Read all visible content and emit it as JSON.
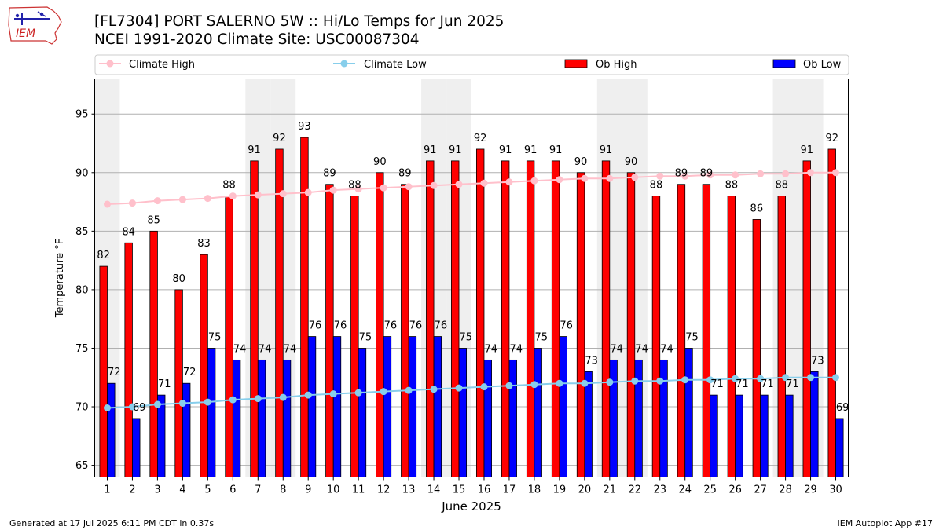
{
  "header": {
    "title_line1": "[FL7304] PORT SALERNO 5W :: Hi/Lo Temps for Jun 2025",
    "title_line2": "NCEI 1991-2020 Climate Site: USC00087304"
  },
  "logo": {
    "text": "IEM"
  },
  "footer": {
    "generated": "Generated at 17 Jul 2025 6:11 PM CDT in 0.37s",
    "app": "IEM Autoplot App #17"
  },
  "colors": {
    "ob_high": "#ff0000",
    "ob_low": "#0000ff",
    "climate_high": "#ffc0cb",
    "climate_low": "#87ceeb",
    "weekend_shade": "#efefef",
    "grid": "#b0b0b0"
  },
  "chart_data": {
    "type": "bar",
    "xlabel": "June 2025",
    "ylabel": "Temperature °F",
    "ylim": [
      64,
      98
    ],
    "yticks": [
      65,
      70,
      75,
      80,
      85,
      90,
      95
    ],
    "grid": "horizontal",
    "legend_position": "top",
    "categories": [
      1,
      2,
      3,
      4,
      5,
      6,
      7,
      8,
      9,
      10,
      11,
      12,
      13,
      14,
      15,
      16,
      17,
      18,
      19,
      20,
      21,
      22,
      23,
      24,
      25,
      26,
      27,
      28,
      29,
      30
    ],
    "weekend_days": [
      1,
      7,
      8,
      14,
      15,
      21,
      22,
      28,
      29
    ],
    "series": [
      {
        "name": "Climate High",
        "kind": "line",
        "values": [
          87.3,
          87.4,
          87.6,
          87.7,
          87.8,
          88.0,
          88.1,
          88.2,
          88.3,
          88.5,
          88.6,
          88.7,
          88.8,
          88.9,
          89.0,
          89.1,
          89.2,
          89.3,
          89.4,
          89.5,
          89.5,
          89.6,
          89.7,
          89.7,
          89.8,
          89.8,
          89.9,
          89.9,
          90.0,
          90.0
        ]
      },
      {
        "name": "Climate Low",
        "kind": "line",
        "values": [
          69.9,
          70.0,
          70.2,
          70.3,
          70.4,
          70.6,
          70.7,
          70.8,
          71.0,
          71.1,
          71.2,
          71.3,
          71.4,
          71.5,
          71.6,
          71.7,
          71.8,
          71.9,
          72.0,
          72.0,
          72.1,
          72.2,
          72.2,
          72.3,
          72.3,
          72.4,
          72.4,
          72.5,
          72.5,
          72.5
        ]
      },
      {
        "name": "Ob High",
        "kind": "bar",
        "values": [
          82,
          84,
          85,
          80,
          83,
          88,
          91,
          92,
          93,
          89,
          88,
          90,
          89,
          91,
          91,
          92,
          91,
          91,
          91,
          90,
          91,
          90,
          88,
          89,
          89,
          88,
          86,
          88,
          91,
          92
        ]
      },
      {
        "name": "Ob Low",
        "kind": "bar",
        "values": [
          72,
          69,
          71,
          72,
          75,
          74,
          74,
          74,
          76,
          76,
          75,
          76,
          76,
          76,
          75,
          74,
          74,
          75,
          76,
          73,
          74,
          74,
          74,
          75,
          71,
          71,
          71,
          71,
          73,
          69
        ]
      }
    ]
  }
}
